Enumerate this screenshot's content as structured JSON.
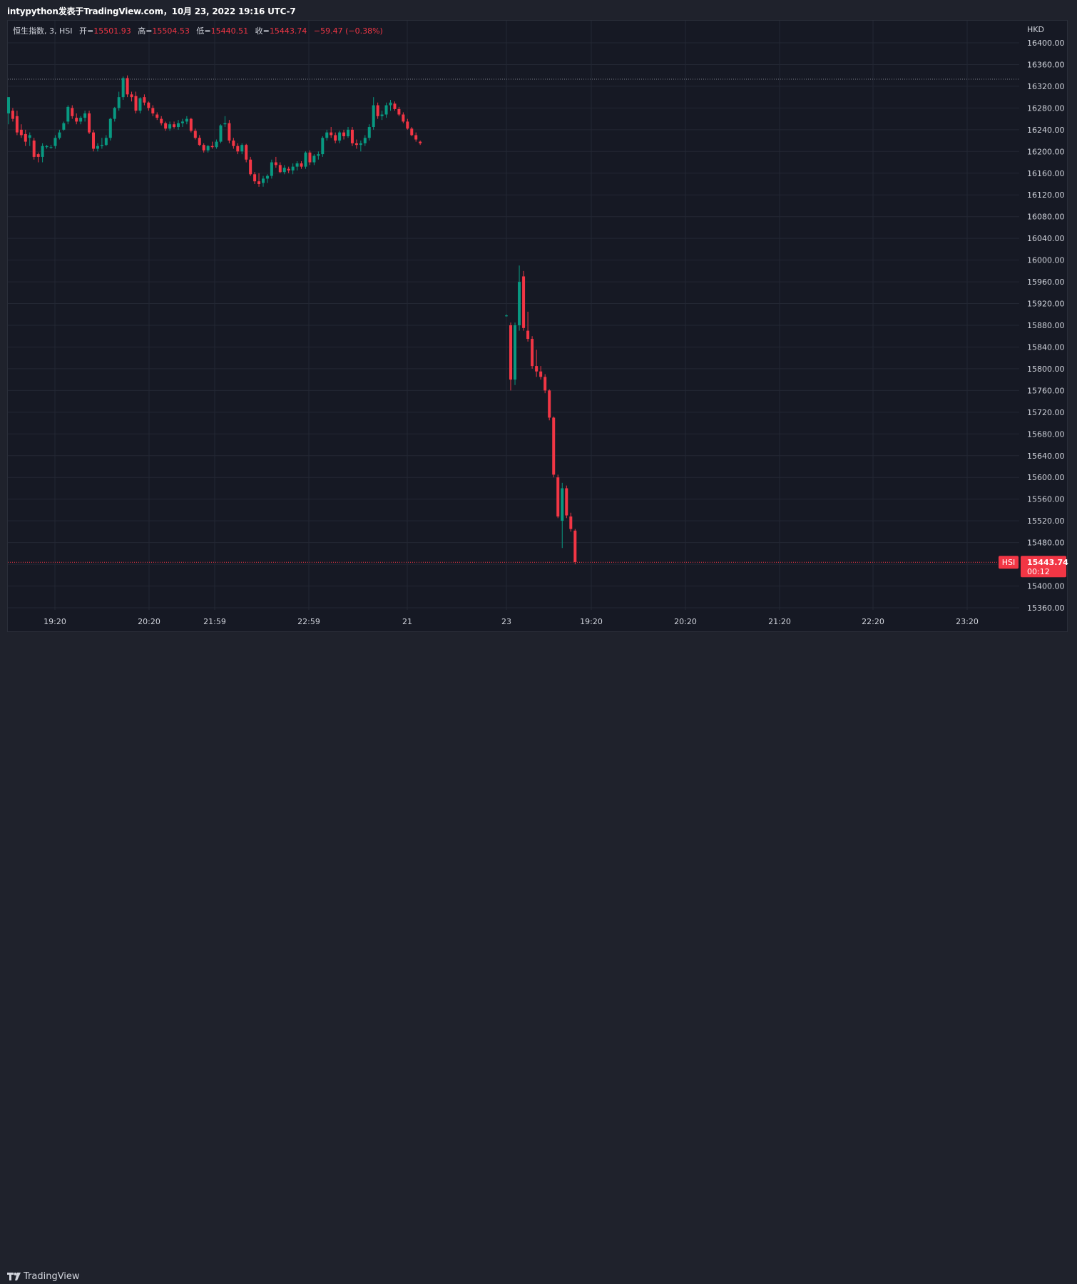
{
  "header": {
    "publisher_text": "intypython发表于TradingView.com，10月 23, 2022 19:16 UTC-7"
  },
  "legend": {
    "symbol_text": "恒生指数, 3, HSI",
    "open_label": "开=",
    "open_value": "15501.93",
    "high_label": "高=",
    "high_value": "15504.53",
    "low_label": "低=",
    "low_value": "15440.51",
    "close_label": "收=",
    "close_value": "15443.74",
    "change_text": "−59.47 (−0.38%)"
  },
  "footer": {
    "brand": "TradingView",
    "logo_icon": "tradingview-logo-icon"
  },
  "colors": {
    "up": "#089981",
    "down": "#f23645",
    "background": "#161924",
    "grid": "#232733",
    "axis_text": "#d1d4dc",
    "price_line": "#f23645",
    "ref_line": "#787b86"
  },
  "chart_data": {
    "type": "candlestick",
    "currency": "HKD",
    "interval": "3",
    "symbol": "HSI",
    "ylim": [
      15340,
      16420
    ],
    "y_ticks": [
      "16400.00",
      "16360.00",
      "16320.00",
      "16280.00",
      "16240.00",
      "16200.00",
      "16160.00",
      "16120.00",
      "16080.00",
      "16040.00",
      "16000.00",
      "15960.00",
      "15920.00",
      "15880.00",
      "15840.00",
      "15800.00",
      "15760.00",
      "15720.00",
      "15680.00",
      "15640.00",
      "15600.00",
      "15560.00",
      "15520.00",
      "15480.00",
      "15440.00",
      "15400.00",
      "15360.00"
    ],
    "x_ticks": [
      "19:20",
      "20:20",
      "21:59",
      "22:59",
      "21",
      "23",
      "19:20",
      "20:20",
      "21:20",
      "22:20",
      "23:20"
    ],
    "last_price": {
      "symbol_label": "HSI",
      "value": "15443.74",
      "countdown": "00:12"
    },
    "reference_line_value": 16333,
    "candles": [
      {
        "o": 16270,
        "h": 16300,
        "l": 16250,
        "c": 16300
      },
      {
        "o": 16275,
        "h": 16280,
        "l": 16255,
        "c": 16260
      },
      {
        "o": 16265,
        "h": 16275,
        "l": 16230,
        "c": 16235
      },
      {
        "o": 16240,
        "h": 16250,
        "l": 16225,
        "c": 16230
      },
      {
        "o": 16232,
        "h": 16240,
        "l": 16210,
        "c": 16218
      },
      {
        "o": 16225,
        "h": 16235,
        "l": 16210,
        "c": 16230
      },
      {
        "o": 16220,
        "h": 16225,
        "l": 16185,
        "c": 16190
      },
      {
        "o": 16195,
        "h": 16198,
        "l": 16180,
        "c": 16190
      },
      {
        "o": 16190,
        "h": 16215,
        "l": 16180,
        "c": 16210
      },
      {
        "o": 16208,
        "h": 16212,
        "l": 16205,
        "c": 16210
      },
      {
        "o": 16207,
        "h": 16212,
        "l": 16205,
        "c": 16208
      },
      {
        "o": 16210,
        "h": 16230,
        "l": 16205,
        "c": 16225
      },
      {
        "o": 16225,
        "h": 16240,
        "l": 16222,
        "c": 16235
      },
      {
        "o": 16240,
        "h": 16255,
        "l": 16238,
        "c": 16252
      },
      {
        "o": 16255,
        "h": 16285,
        "l": 16250,
        "c": 16282
      },
      {
        "o": 16280,
        "h": 16285,
        "l": 16260,
        "c": 16265
      },
      {
        "o": 16262,
        "h": 16270,
        "l": 16250,
        "c": 16255
      },
      {
        "o": 16255,
        "h": 16265,
        "l": 16250,
        "c": 16262
      },
      {
        "o": 16262,
        "h": 16275,
        "l": 16255,
        "c": 16270
      },
      {
        "o": 16270,
        "h": 16275,
        "l": 16232,
        "c": 16235
      },
      {
        "o": 16235,
        "h": 16240,
        "l": 16200,
        "c": 16205
      },
      {
        "o": 16205,
        "h": 16215,
        "l": 16200,
        "c": 16210
      },
      {
        "o": 16210,
        "h": 16225,
        "l": 16205,
        "c": 16212
      },
      {
        "o": 16212,
        "h": 16230,
        "l": 16210,
        "c": 16225
      },
      {
        "o": 16225,
        "h": 16262,
        "l": 16220,
        "c": 16260
      },
      {
        "o": 16260,
        "h": 16282,
        "l": 16255,
        "c": 16280
      },
      {
        "o": 16280,
        "h": 16310,
        "l": 16275,
        "c": 16300
      },
      {
        "o": 16300,
        "h": 16338,
        "l": 16295,
        "c": 16335
      },
      {
        "o": 16335,
        "h": 16340,
        "l": 16300,
        "c": 16305
      },
      {
        "o": 16305,
        "h": 16310,
        "l": 16292,
        "c": 16300
      },
      {
        "o": 16302,
        "h": 16310,
        "l": 16270,
        "c": 16275
      },
      {
        "o": 16275,
        "h": 16300,
        "l": 16270,
        "c": 16298
      },
      {
        "o": 16300,
        "h": 16305,
        "l": 16285,
        "c": 16290
      },
      {
        "o": 16290,
        "h": 16292,
        "l": 16275,
        "c": 16280
      },
      {
        "o": 16280,
        "h": 16285,
        "l": 16265,
        "c": 16270
      },
      {
        "o": 16268,
        "h": 16272,
        "l": 16258,
        "c": 16262
      },
      {
        "o": 16260,
        "h": 16265,
        "l": 16248,
        "c": 16252
      },
      {
        "o": 16252,
        "h": 16255,
        "l": 16238,
        "c": 16242
      },
      {
        "o": 16242,
        "h": 16255,
        "l": 16238,
        "c": 16250
      },
      {
        "o": 16250,
        "h": 16255,
        "l": 16242,
        "c": 16245
      },
      {
        "o": 16245,
        "h": 16258,
        "l": 16240,
        "c": 16252
      },
      {
        "o": 16252,
        "h": 16260,
        "l": 16245,
        "c": 16255
      },
      {
        "o": 16255,
        "h": 16265,
        "l": 16250,
        "c": 16260
      },
      {
        "o": 16260,
        "h": 16262,
        "l": 16235,
        "c": 16238
      },
      {
        "o": 16238,
        "h": 16242,
        "l": 16222,
        "c": 16225
      },
      {
        "o": 16225,
        "h": 16230,
        "l": 16210,
        "c": 16212
      },
      {
        "o": 16212,
        "h": 16215,
        "l": 16198,
        "c": 16202
      },
      {
        "o": 16202,
        "h": 16212,
        "l": 16198,
        "c": 16210
      },
      {
        "o": 16210,
        "h": 16218,
        "l": 16205,
        "c": 16208
      },
      {
        "o": 16208,
        "h": 16222,
        "l": 16205,
        "c": 16218
      },
      {
        "o": 16218,
        "h": 16250,
        "l": 16215,
        "c": 16248
      },
      {
        "o": 16250,
        "h": 16265,
        "l": 16245,
        "c": 16252
      },
      {
        "o": 16252,
        "h": 16258,
        "l": 16215,
        "c": 16220
      },
      {
        "o": 16220,
        "h": 16225,
        "l": 16205,
        "c": 16210
      },
      {
        "o": 16210,
        "h": 16215,
        "l": 16195,
        "c": 16200
      },
      {
        "o": 16200,
        "h": 16215,
        "l": 16195,
        "c": 16212
      },
      {
        "o": 16212,
        "h": 16214,
        "l": 16180,
        "c": 16185
      },
      {
        "o": 16185,
        "h": 16190,
        "l": 16155,
        "c": 16158
      },
      {
        "o": 16158,
        "h": 16162,
        "l": 16140,
        "c": 16145
      },
      {
        "o": 16145,
        "h": 16160,
        "l": 16135,
        "c": 16140
      },
      {
        "o": 16142,
        "h": 16155,
        "l": 16135,
        "c": 16150
      },
      {
        "o": 16150,
        "h": 16158,
        "l": 16142,
        "c": 16155
      },
      {
        "o": 16155,
        "h": 16185,
        "l": 16150,
        "c": 16180
      },
      {
        "o": 16180,
        "h": 16190,
        "l": 16170,
        "c": 16175
      },
      {
        "o": 16175,
        "h": 16180,
        "l": 16160,
        "c": 16162
      },
      {
        "o": 16162,
        "h": 16175,
        "l": 16158,
        "c": 16170
      },
      {
        "o": 16168,
        "h": 16172,
        "l": 16160,
        "c": 16165
      },
      {
        "o": 16165,
        "h": 16178,
        "l": 16158,
        "c": 16172
      },
      {
        "o": 16172,
        "h": 16182,
        "l": 16165,
        "c": 16178
      },
      {
        "o": 16178,
        "h": 16182,
        "l": 16168,
        "c": 16172
      },
      {
        "o": 16172,
        "h": 16200,
        "l": 16168,
        "c": 16198
      },
      {
        "o": 16198,
        "h": 16202,
        "l": 16175,
        "c": 16180
      },
      {
        "o": 16180,
        "h": 16195,
        "l": 16175,
        "c": 16192
      },
      {
        "o": 16192,
        "h": 16200,
        "l": 16185,
        "c": 16195
      },
      {
        "o": 16195,
        "h": 16228,
        "l": 16190,
        "c": 16225
      },
      {
        "o": 16225,
        "h": 16240,
        "l": 16220,
        "c": 16235
      },
      {
        "o": 16235,
        "h": 16245,
        "l": 16225,
        "c": 16230
      },
      {
        "o": 16230,
        "h": 16235,
        "l": 16215,
        "c": 16220
      },
      {
        "o": 16220,
        "h": 16238,
        "l": 16215,
        "c": 16235
      },
      {
        "o": 16235,
        "h": 16240,
        "l": 16222,
        "c": 16228
      },
      {
        "o": 16228,
        "h": 16245,
        "l": 16225,
        "c": 16240
      },
      {
        "o": 16240,
        "h": 16245,
        "l": 16210,
        "c": 16215
      },
      {
        "o": 16215,
        "h": 16222,
        "l": 16205,
        "c": 16212
      },
      {
        "o": 16212,
        "h": 16220,
        "l": 16200,
        "c": 16215
      },
      {
        "o": 16215,
        "h": 16230,
        "l": 16210,
        "c": 16225
      },
      {
        "o": 16225,
        "h": 16250,
        "l": 16220,
        "c": 16245
      },
      {
        "o": 16245,
        "h": 16300,
        "l": 16240,
        "c": 16285
      },
      {
        "o": 16285,
        "h": 16290,
        "l": 16260,
        "c": 16265
      },
      {
        "o": 16265,
        "h": 16275,
        "l": 16258,
        "c": 16268
      },
      {
        "o": 16268,
        "h": 16290,
        "l": 16262,
        "c": 16285
      },
      {
        "o": 16285,
        "h": 16295,
        "l": 16275,
        "c": 16290
      },
      {
        "o": 16288,
        "h": 16292,
        "l": 16275,
        "c": 16278
      },
      {
        "o": 16278,
        "h": 16282,
        "l": 16265,
        "c": 16268
      },
      {
        "o": 16268,
        "h": 16272,
        "l": 16252,
        "c": 16255
      },
      {
        "o": 16255,
        "h": 16260,
        "l": 16240,
        "c": 16242
      },
      {
        "o": 16242,
        "h": 16245,
        "l": 16228,
        "c": 16230
      },
      {
        "o": 16230,
        "h": 16235,
        "l": 16218,
        "c": 16222
      },
      {
        "o": 16218,
        "h": 16220,
        "l": 16212,
        "c": 16215
      },
      null,
      {
        "o": 15898,
        "h": 15900,
        "l": 15896,
        "c": 15898
      },
      {
        "o": 15880,
        "h": 15885,
        "l": 15760,
        "c": 15780
      },
      {
        "o": 15780,
        "h": 15885,
        "l": 15770,
        "c": 15880
      },
      {
        "o": 15880,
        "h": 15990,
        "l": 15870,
        "c": 15960
      },
      {
        "o": 15970,
        "h": 15980,
        "l": 15870,
        "c": 15875
      },
      {
        "o": 15870,
        "h": 15905,
        "l": 15850,
        "c": 15855
      },
      {
        "o": 15855,
        "h": 15860,
        "l": 15800,
        "c": 15805
      },
      {
        "o": 15805,
        "h": 15835,
        "l": 15785,
        "c": 15795
      },
      {
        "o": 15795,
        "h": 15805,
        "l": 15780,
        "c": 15785
      },
      {
        "o": 15785,
        "h": 15790,
        "l": 15755,
        "c": 15760
      },
      {
        "o": 15760,
        "h": 15762,
        "l": 15705,
        "c": 15710
      },
      {
        "o": 15710,
        "h": 15712,
        "l": 15600,
        "c": 15605
      },
      {
        "o": 15600,
        "h": 15605,
        "l": 15525,
        "c": 15528
      },
      {
        "o": 15520,
        "h": 15590,
        "l": 15470,
        "c": 15580
      },
      {
        "o": 15580,
        "h": 15585,
        "l": 15525,
        "c": 15530
      },
      {
        "o": 15528,
        "h": 15535,
        "l": 15500,
        "c": 15505
      },
      {
        "o": 15502,
        "h": 15505,
        "l": 15440,
        "c": 15444
      }
    ]
  }
}
